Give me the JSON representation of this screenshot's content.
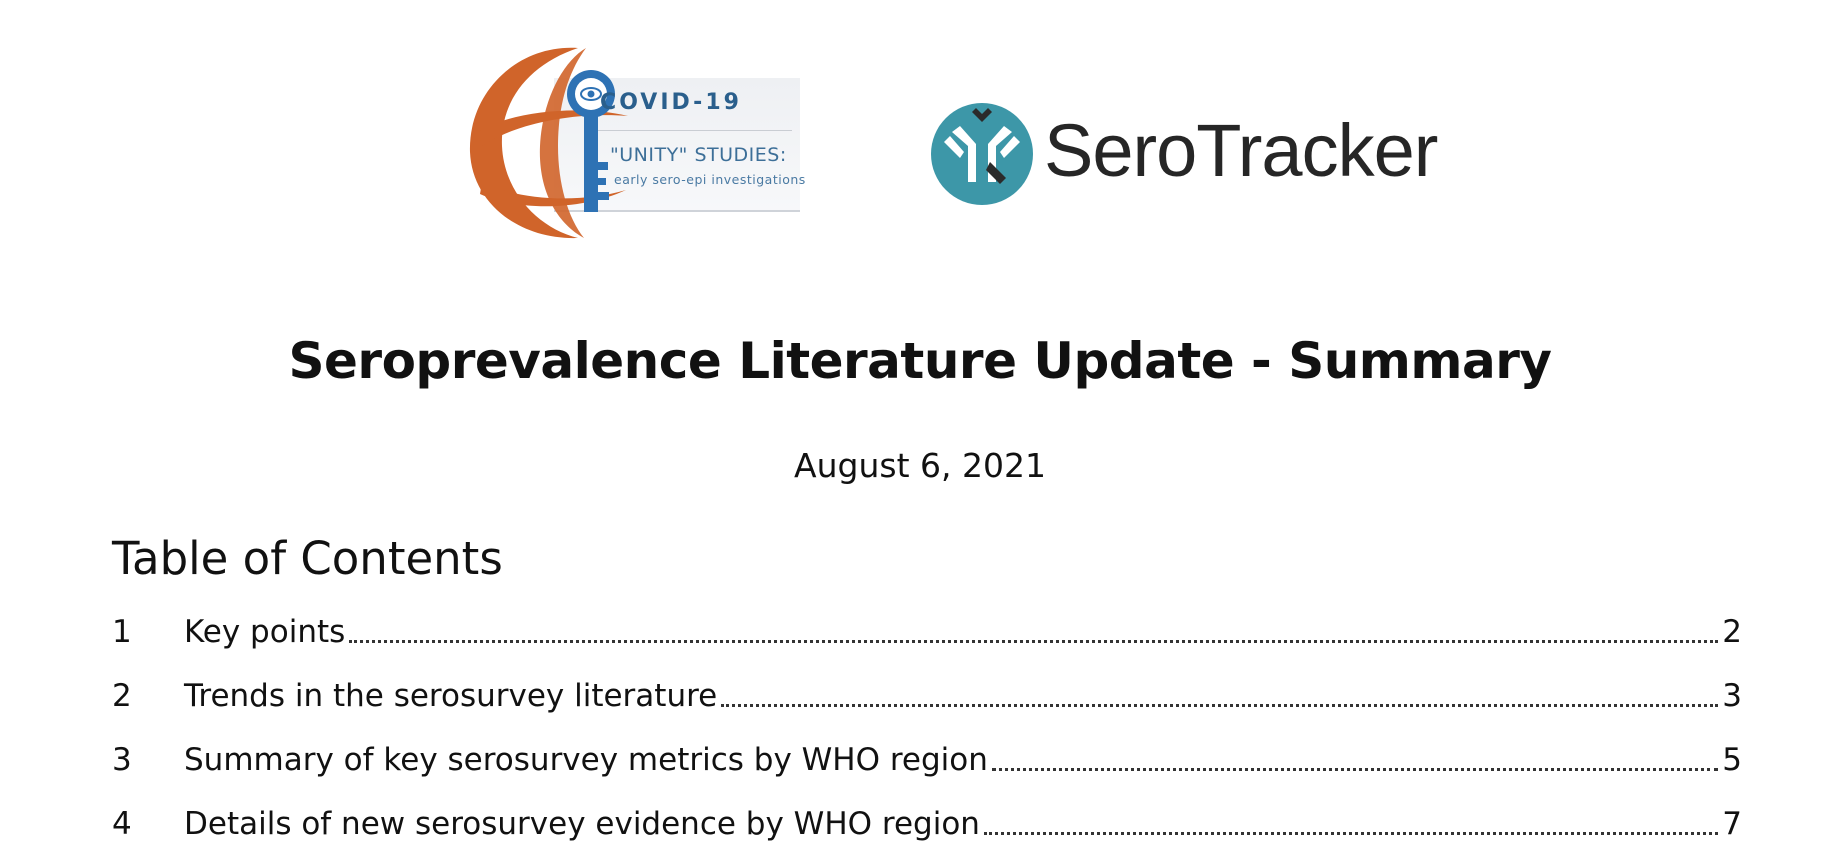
{
  "logos": {
    "unity": {
      "title": "COVID-19",
      "subtitle": "\"UNITY\" STUDIES:",
      "tagline": "early sero-epi investigations",
      "colors": {
        "globe": "#d0642a",
        "key": "#2e72b4",
        "text": "#2a5f8c"
      }
    },
    "serotracker": {
      "name": "SeroTracker",
      "colors": {
        "circle": "#3d97a8",
        "text": "#262626"
      }
    }
  },
  "document": {
    "title": "Seroprevalence Literature Update - Summary",
    "date": "August 6, 2021"
  },
  "toc": {
    "heading": "Table of Contents",
    "items": [
      {
        "number": "1",
        "title": "Key points",
        "page": "2"
      },
      {
        "number": "2",
        "title": "Trends in the serosurvey literature",
        "page": "3"
      },
      {
        "number": "3",
        "title": "Summary of key serosurvey metrics by WHO region",
        "page": "5"
      },
      {
        "number": "4",
        "title": "Details of new serosurvey evidence by WHO region",
        "page": "7"
      }
    ]
  }
}
